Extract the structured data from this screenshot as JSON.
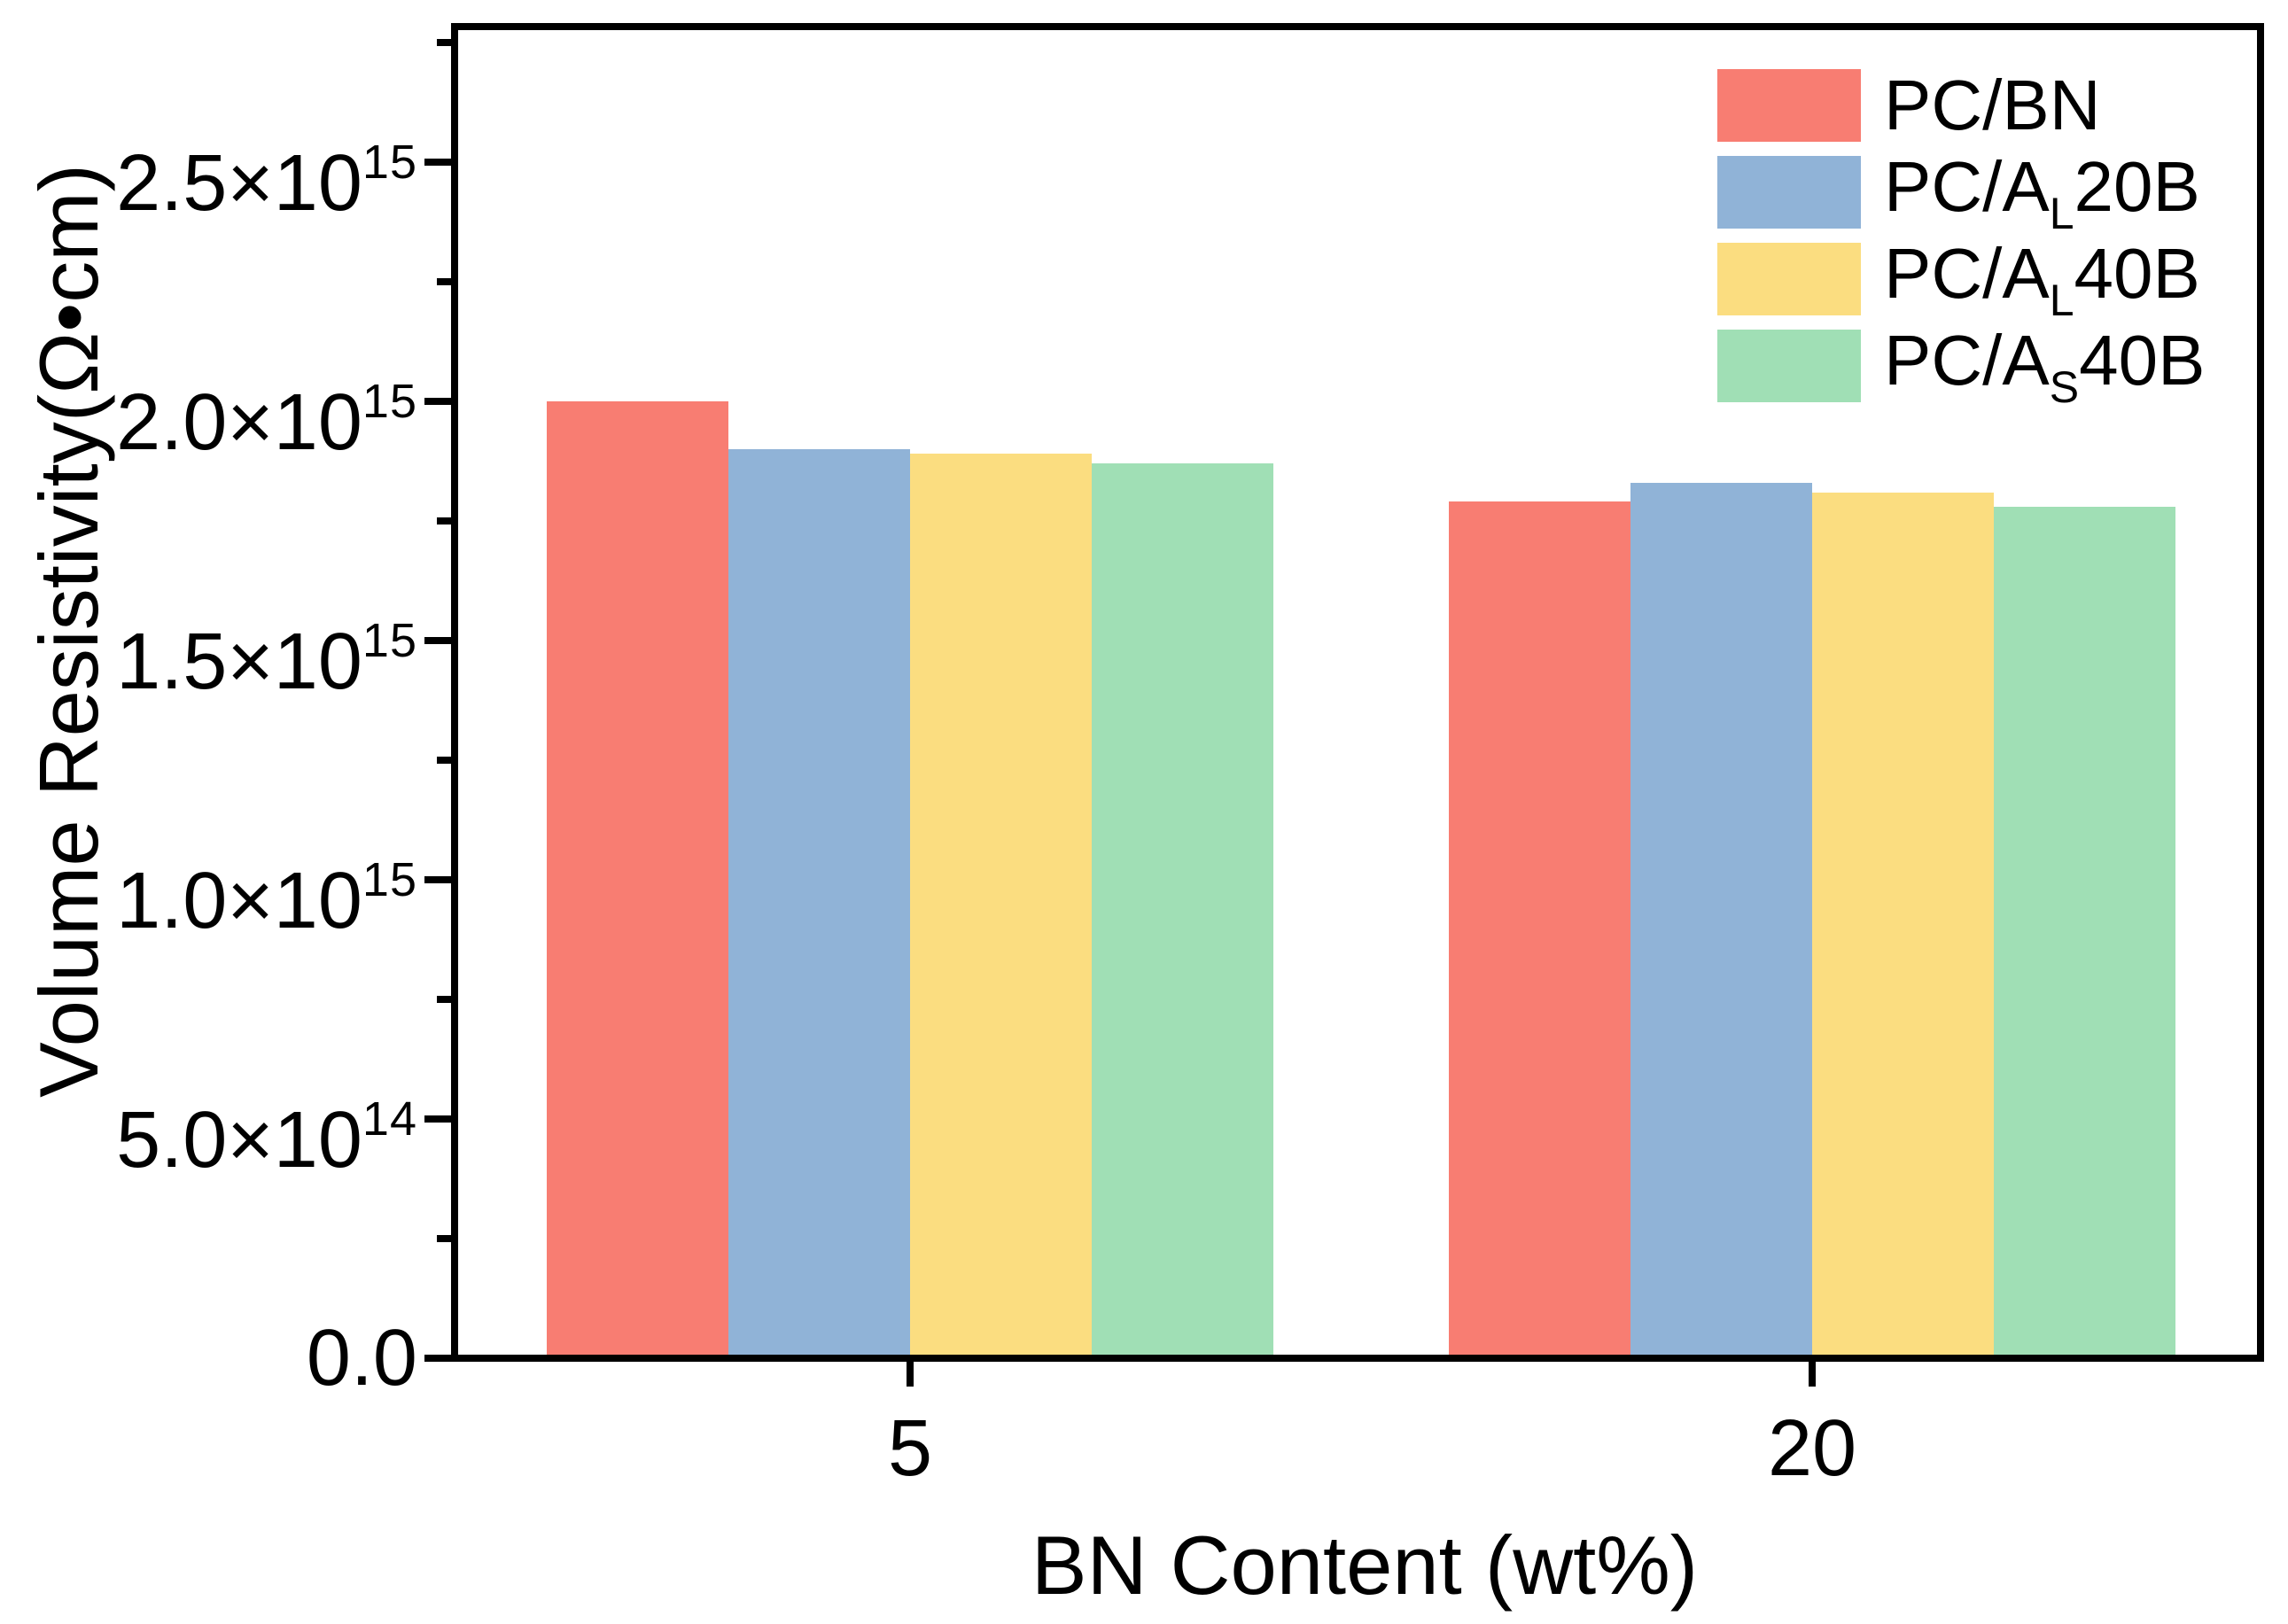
{
  "chart_data": {
    "type": "bar",
    "title": "",
    "xlabel": "BN Content (wt%)",
    "ylabel": "Volume Resistivity(Ω•cm)",
    "categories": [
      "5",
      "20"
    ],
    "series": [
      {
        "name": "PC/BN",
        "label_parts": {
          "pre": "PC/BN",
          "sub": "",
          "post": ""
        },
        "color": "#F87D72",
        "values": [
          2000000000000000.0,
          1790000000000000.0
        ]
      },
      {
        "name": "PC/AL20B",
        "label_parts": {
          "pre": "PC/A",
          "sub": "L",
          "post": "20B"
        },
        "color": "#90B3D7",
        "values": [
          1900000000000000.0,
          1830000000000000.0
        ]
      },
      {
        "name": "PC/AL40B",
        "label_parts": {
          "pre": "PC/A",
          "sub": "L",
          "post": "40B"
        },
        "color": "#FBDD80",
        "values": [
          1890000000000000.0,
          1810000000000000.0
        ]
      },
      {
        "name": "PC/AS40B",
        "label_parts": {
          "pre": "PC/A",
          "sub": "S",
          "post": "40B"
        },
        "color": "#A0DFB5",
        "values": [
          1870000000000000.0,
          1780000000000000.0
        ]
      }
    ],
    "y_ticks": [
      {
        "value": 2500000000000000.0,
        "mantissa": "2.5×10",
        "exponent": "15"
      },
      {
        "value": 2000000000000000.0,
        "mantissa": "2.0×10",
        "exponent": "15"
      },
      {
        "value": 1500000000000000.0,
        "mantissa": "1.5×10",
        "exponent": "15"
      },
      {
        "value": 1000000000000000.0,
        "mantissa": "1.0×10",
        "exponent": "15"
      },
      {
        "value": 500000000000000.0,
        "mantissa": "5.0×10",
        "exponent": "14"
      },
      {
        "value": 0,
        "mantissa": "0.0",
        "exponent": ""
      }
    ],
    "y_minor_ticks": [
      250000000000000.0,
      750000000000000.0,
      1250000000000000.0,
      1750000000000000.0,
      2250000000000000.0,
      2750000000000000.0
    ],
    "ylim": [
      0,
      2783000000000000.0
    ],
    "grid": false,
    "legend_position": "top-right",
    "axis_color": "#000000"
  }
}
